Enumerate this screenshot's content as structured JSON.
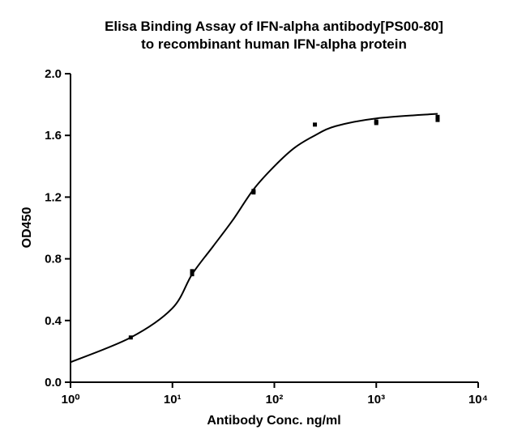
{
  "chart_data": {
    "type": "scatter",
    "title": [
      "Elisa Binding Assay of IFN-alpha antibody[PS00-80]",
      "to recombinant human IFN-alpha protein"
    ],
    "x_label": "Antibody Conc. ng/ml",
    "y_label": "OD450",
    "x_log": true,
    "xlim": [
      1,
      10000
    ],
    "xticks": [
      {
        "value": 1,
        "label": "10⁰"
      },
      {
        "value": 10,
        "label": "10¹"
      },
      {
        "value": 100,
        "label": "10²"
      },
      {
        "value": 1000,
        "label": "10³"
      },
      {
        "value": 10000,
        "label": "10⁴"
      }
    ],
    "ylim": [
      0,
      2
    ],
    "yticks": [
      {
        "value": 0,
        "label": "0.0"
      },
      {
        "value": 0.4,
        "label": "0.4"
      },
      {
        "value": 0.8,
        "label": "0.8"
      },
      {
        "value": 1.2,
        "label": "1.2"
      },
      {
        "value": 1.6,
        "label": "1.6"
      },
      {
        "value": 2,
        "label": "2.0"
      }
    ],
    "series": [
      {
        "color": "#000000",
        "x": [
          3.9,
          15.6,
          15.6,
          62.5,
          62.5,
          250,
          1000,
          1000,
          4000,
          4000
        ],
        "values": [
          0.29,
          0.7,
          0.72,
          1.23,
          1.24,
          1.67,
          1.68,
          1.69,
          1.7,
          1.72
        ]
      },
      {
        "type": "line",
        "color": "#000000",
        "x": [
          1,
          3.9,
          10,
          15.6,
          25,
          39,
          62.5,
          100,
          158,
          250,
          400,
          1000,
          4000
        ],
        "values": [
          0.13,
          0.29,
          0.48,
          0.7,
          0.88,
          1.05,
          1.25,
          1.4,
          1.52,
          1.6,
          1.66,
          1.71,
          1.74
        ]
      }
    ]
  }
}
